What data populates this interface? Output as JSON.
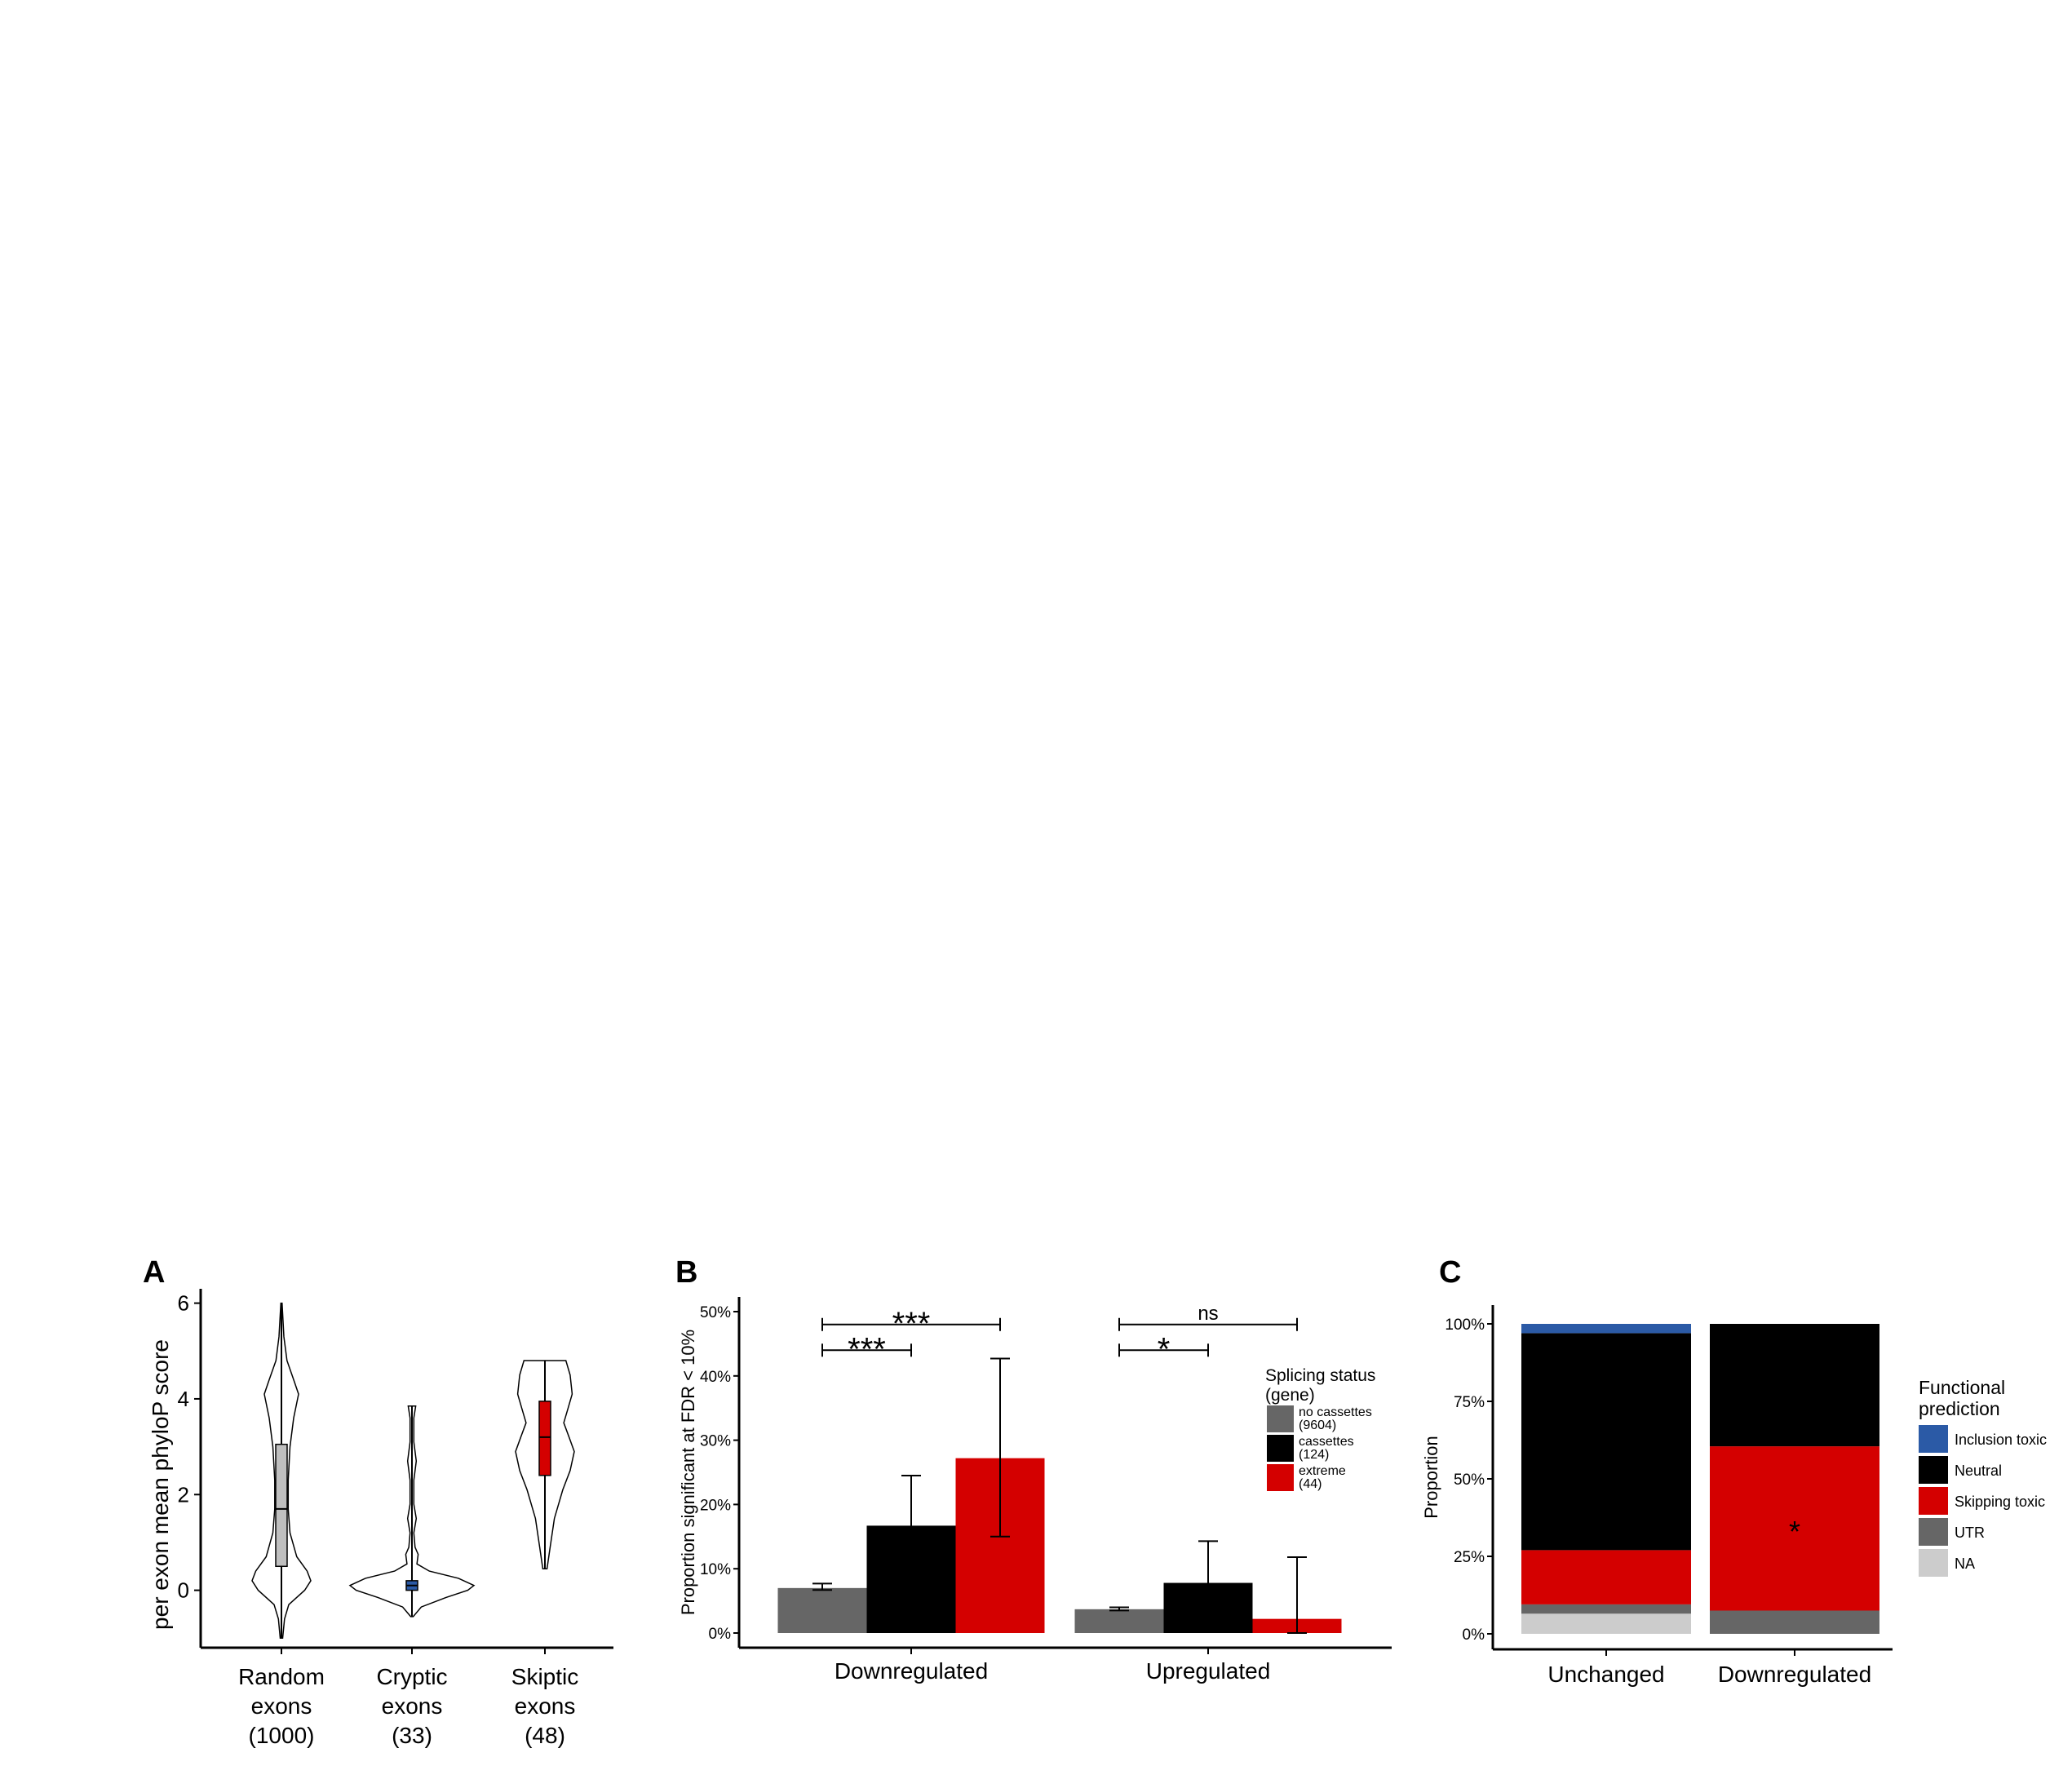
{
  "panels": {
    "A": {
      "letter": "A"
    },
    "B": {
      "letter": "B"
    },
    "C": {
      "letter": "C"
    }
  },
  "colors": {
    "red": "#d40000",
    "black": "#000000",
    "dark_gray": "#666666",
    "light_gray": "#cccccc",
    "box_gray": "#bfbfbf",
    "blue": "#2b5aa6",
    "white": "#ffffff"
  },
  "chart_data": [
    {
      "panel": "A",
      "type": "violin",
      "ylabel": "per exon mean phyloP score",
      "ylim": [
        -1.2,
        6.3
      ],
      "yticks": [
        0,
        2,
        4,
        6
      ],
      "ytick_labels": [
        "0",
        "2",
        "4",
        "6"
      ],
      "categories": [
        "Random exons (1000)",
        "Cryptic exons (33)",
        "Skiptic exons (48)"
      ],
      "category_label_lines": [
        [
          "Random",
          "exons",
          "(1000)"
        ],
        [
          "Cryptic",
          "exons",
          "(33)"
        ],
        [
          "Skiptic",
          "exons",
          "(48)"
        ]
      ],
      "series": [
        {
          "category": "Random exons (1000)",
          "box_color": "#bfbfbf",
          "min": -1.0,
          "q1": 0.5,
          "median": 1.7,
          "q3": 3.05,
          "max": 6.0,
          "density": [
            [
              -1.0,
              0.02
            ],
            [
              -0.6,
              0.05
            ],
            [
              -0.3,
              0.12
            ],
            [
              0.0,
              0.38
            ],
            [
              0.2,
              0.48
            ],
            [
              0.4,
              0.42
            ],
            [
              0.7,
              0.25
            ],
            [
              1.2,
              0.14
            ],
            [
              1.7,
              0.11
            ],
            [
              2.3,
              0.11
            ],
            [
              3.0,
              0.14
            ],
            [
              3.6,
              0.2
            ],
            [
              4.1,
              0.28
            ],
            [
              4.4,
              0.2
            ],
            [
              4.8,
              0.09
            ],
            [
              5.3,
              0.04
            ],
            [
              6.0,
              0.01
            ]
          ]
        },
        {
          "category": "Cryptic exons (33)",
          "box_color": "#2b5aa6",
          "min": -0.55,
          "q1": 0.0,
          "median": 0.1,
          "q3": 0.2,
          "max": 3.85,
          "density": [
            [
              -0.55,
              0.02
            ],
            [
              -0.35,
              0.15
            ],
            [
              -0.15,
              0.55
            ],
            [
              0.0,
              0.9
            ],
            [
              0.1,
              1.0
            ],
            [
              0.25,
              0.75
            ],
            [
              0.4,
              0.28
            ],
            [
              0.55,
              0.08
            ],
            [
              0.75,
              0.1
            ],
            [
              0.9,
              0.05
            ],
            [
              1.2,
              0.03
            ],
            [
              1.5,
              0.07
            ],
            [
              1.8,
              0.03
            ],
            [
              2.3,
              0.03
            ],
            [
              2.7,
              0.07
            ],
            [
              3.1,
              0.03
            ],
            [
              3.6,
              0.03
            ],
            [
              3.85,
              0.06
            ]
          ]
        },
        {
          "category": "Skiptic exons (48)",
          "box_color": "#d40000",
          "min": 0.45,
          "q1": 2.4,
          "median": 3.2,
          "q3": 3.95,
          "max": 4.8,
          "density": [
            [
              0.45,
              0.02
            ],
            [
              0.9,
              0.05
            ],
            [
              1.5,
              0.09
            ],
            [
              2.1,
              0.17
            ],
            [
              2.5,
              0.24
            ],
            [
              2.9,
              0.28
            ],
            [
              3.2,
              0.23
            ],
            [
              3.5,
              0.18
            ],
            [
              3.8,
              0.22
            ],
            [
              4.1,
              0.26
            ],
            [
              4.5,
              0.24
            ],
            [
              4.8,
              0.2
            ]
          ]
        }
      ]
    },
    {
      "panel": "B",
      "type": "bar",
      "ylabel": "Proportion significant at FDR < 10%",
      "ylim": [
        0,
        0.5
      ],
      "yticks": [
        0,
        0.1,
        0.2,
        0.3,
        0.4,
        0.5
      ],
      "ytick_labels": [
        "0%",
        "10%",
        "20%",
        "30%",
        "40%",
        "50%"
      ],
      "categories": [
        "Downregulated",
        "Upregulated"
      ],
      "legend": {
        "title_lines": [
          "Splicing status",
          "(gene)"
        ],
        "position": "top-right",
        "entries": [
          {
            "label_lines": [
              "no cassettes",
              "(9604)"
            ],
            "color": "#666666"
          },
          {
            "label_lines": [
              "cassettes",
              "(124)"
            ],
            "color": "#000000"
          },
          {
            "label_lines": [
              "extreme",
              "(44)"
            ],
            "color": "#d40000"
          }
        ]
      },
      "series": [
        {
          "name": "no cassettes (9604)",
          "color": "#666666",
          "values": [
            0.07,
            0.037
          ],
          "err_low": [
            0.067,
            0.035
          ],
          "err_high": [
            0.077,
            0.04
          ]
        },
        {
          "name": "cassettes (124)",
          "color": "#000000",
          "values": [
            0.167,
            0.078
          ],
          "err_low": [
            0.103,
            0.035
          ],
          "err_high": [
            0.245,
            0.143
          ]
        },
        {
          "name": "extreme (44)",
          "color": "#d40000",
          "values": [
            0.272,
            0.022
          ],
          "err_low": [
            0.15,
            0.0
          ],
          "err_high": [
            0.427,
            0.118
          ]
        }
      ],
      "annotations": [
        {
          "text": "***",
          "category": 0,
          "from_series": 0,
          "to_series": 1,
          "y": 0.44
        },
        {
          "text": "***",
          "category": 0,
          "from_series": 0,
          "to_series": 2,
          "y": 0.48
        },
        {
          "text": "*",
          "category": 1,
          "from_series": 0,
          "to_series": 1,
          "y": 0.44
        },
        {
          "text": "ns",
          "category": 1,
          "from_series": 0,
          "to_series": 2,
          "y": 0.48
        }
      ]
    },
    {
      "panel": "C",
      "type": "stacked_bar",
      "ylabel": "Proportion",
      "ylim": [
        0,
        1
      ],
      "yticks": [
        0,
        0.25,
        0.5,
        0.75,
        1.0
      ],
      "ytick_labels": [
        "0%",
        "25%",
        "50%",
        "75%",
        "100%"
      ],
      "categories": [
        "Unchanged",
        "Downregulated"
      ],
      "legend": {
        "title_lines": [
          "Functional",
          "prediction"
        ],
        "position": "right"
      },
      "series": [
        {
          "name": "NA",
          "color": "#cccccc",
          "values": [
            0.065,
            0.0
          ]
        },
        {
          "name": "UTR",
          "color": "#666666",
          "values": [
            0.03,
            0.075
          ]
        },
        {
          "name": "Skipping toxic",
          "color": "#d40000",
          "values": [
            0.175,
            0.53
          ]
        },
        {
          "name": "Neutral",
          "color": "#000000",
          "values": [
            0.7,
            0.395
          ]
        },
        {
          "name": "Inclusion toxic",
          "color": "#2b5aa6",
          "values": [
            0.03,
            0.0
          ]
        }
      ],
      "legend_order": [
        "Inclusion toxic",
        "Neutral",
        "Skipping toxic",
        "UTR",
        "NA"
      ],
      "annotations": [
        {
          "text": "*",
          "category": 1,
          "y": 0.345
        }
      ]
    }
  ]
}
